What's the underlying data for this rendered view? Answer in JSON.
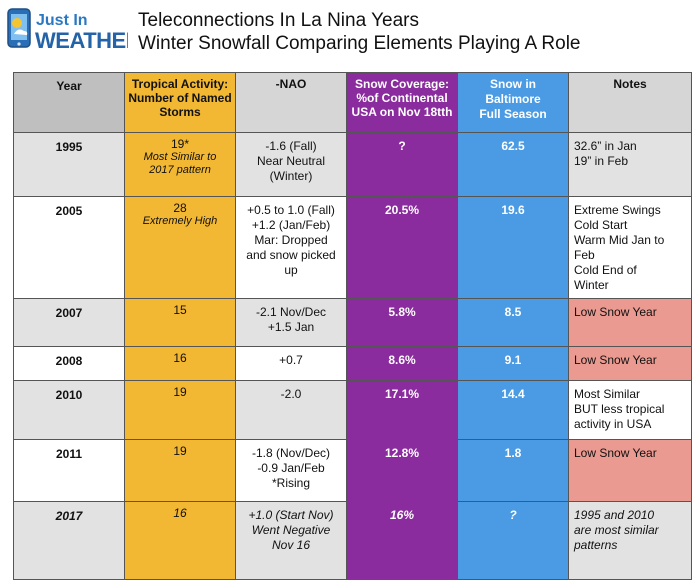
{
  "logo": {
    "line1": "Just In",
    "line2": "WEATHER"
  },
  "title": {
    "line1": "Teleconnections In La Nina Years",
    "line2": "Winter Snowfall Comparing Elements Playing A Role"
  },
  "table": {
    "headers": {
      "year": "Year",
      "tropical": [
        "Tropical Activity:",
        "Number of Named",
        "Storms"
      ],
      "nao": "-NAO",
      "snow_coverage": [
        "Snow Coverage:",
        "%of Continental",
        "USA on Nov 18tth"
      ],
      "baltimore": [
        "Snow in",
        "Baltimore",
        "Full Season"
      ],
      "notes": "Notes"
    },
    "rows": [
      {
        "year": "1995",
        "tropical": "19*",
        "tropical_sub": [
          "Most Similar to",
          "2017 pattern"
        ],
        "nao": [
          "-1.6 (Fall)",
          "Near Neutral",
          "(Winter)"
        ],
        "snow_coverage": "?",
        "baltimore": "62.5",
        "notes": [
          "32.6” in Jan",
          "19” in Feb"
        ]
      },
      {
        "year": "2005",
        "tropical": "28",
        "tropical_sub": [
          "Extremely High"
        ],
        "nao": [
          "+0.5 to 1.0 (Fall)",
          "+1.2 (Jan/Feb)",
          "Mar: Dropped",
          "and snow picked",
          "up"
        ],
        "snow_coverage": "20.5%",
        "baltimore": "19.6",
        "notes": [
          "Extreme Swings",
          "Cold Start",
          "Warm Mid Jan to",
          "Feb",
          "Cold End of",
          "Winter"
        ]
      },
      {
        "year": "2007",
        "tropical": "15",
        "nao": [
          "-2.1 Nov/Dec",
          "+1.5 Jan"
        ],
        "snow_coverage": "5.8%",
        "baltimore": "8.5",
        "notes": [
          "Low Snow Year"
        ]
      },
      {
        "year": "2008",
        "tropical": "16",
        "nao": [
          "+0.7"
        ],
        "snow_coverage": "8.6%",
        "baltimore": "9.1",
        "notes": [
          "Low Snow Year"
        ]
      },
      {
        "year": "2010",
        "tropical": "19",
        "nao": [
          "-2.0"
        ],
        "snow_coverage": "17.1%",
        "baltimore": "14.4",
        "notes": [
          "Most Similar",
          "BUT less tropical",
          "activity in USA"
        ]
      },
      {
        "year": "2011",
        "tropical": "19",
        "nao": [
          "-1.8 (Nov/Dec)",
          "-0.9 Jan/Feb",
          "*Rising"
        ],
        "snow_coverage": "12.8%",
        "baltimore": "1.8",
        "notes": [
          "Low Snow Year"
        ]
      },
      {
        "year": "2017",
        "tropical": "16",
        "nao": [
          "+1.0 (Start Nov)",
          "Went Negative",
          "Nov 16"
        ],
        "snow_coverage": "16%",
        "baltimore": "?",
        "notes": [
          "1995 and 2010",
          "are most similar",
          "patterns"
        ]
      }
    ]
  },
  "colors": {
    "tropical": "#f2b733",
    "snow_coverage": "#8b2c9e",
    "baltimore": "#4a9be3",
    "low_snow_note": "#ea9a90",
    "gray_row": "#e2e2e2"
  }
}
